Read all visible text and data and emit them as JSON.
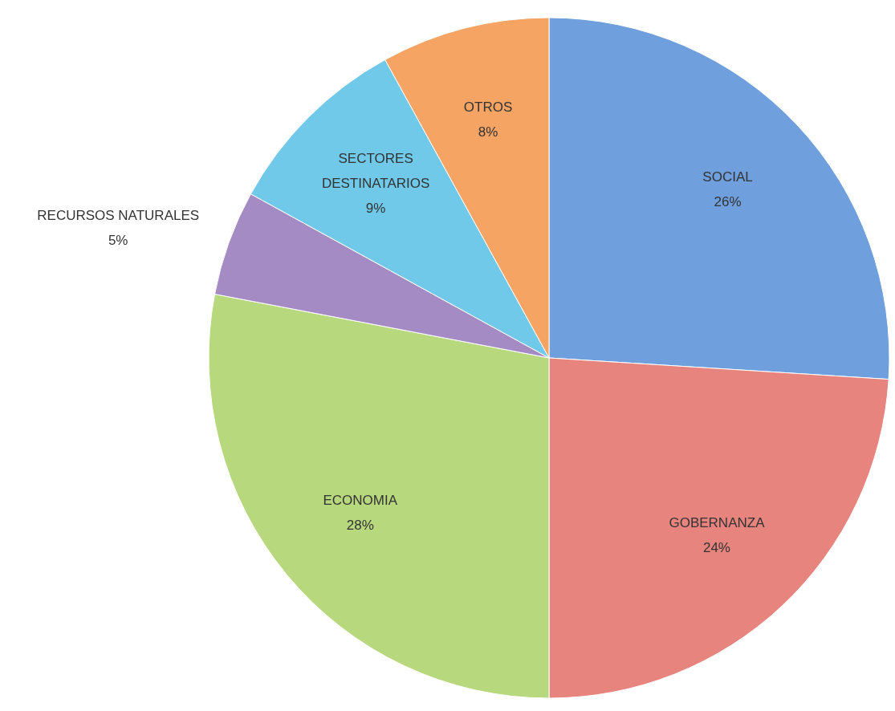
{
  "chart_data": {
    "type": "pie",
    "categories": [
      "SOCIAL",
      "GOBERNANZA",
      "ECONOMIA",
      "RECURSOS NATURALES",
      "SECTORES DESTINATARIOS",
      "OTROS"
    ],
    "values": [
      26,
      24,
      28,
      5,
      9,
      8
    ],
    "value_labels": [
      "26%",
      "24%",
      "28%",
      "5%",
      "9%",
      "8%"
    ],
    "colors": [
      "#6f9fdc",
      "#e8847e",
      "#b8d87e",
      "#a48bc4",
      "#70c9e8",
      "#f5a463"
    ]
  }
}
